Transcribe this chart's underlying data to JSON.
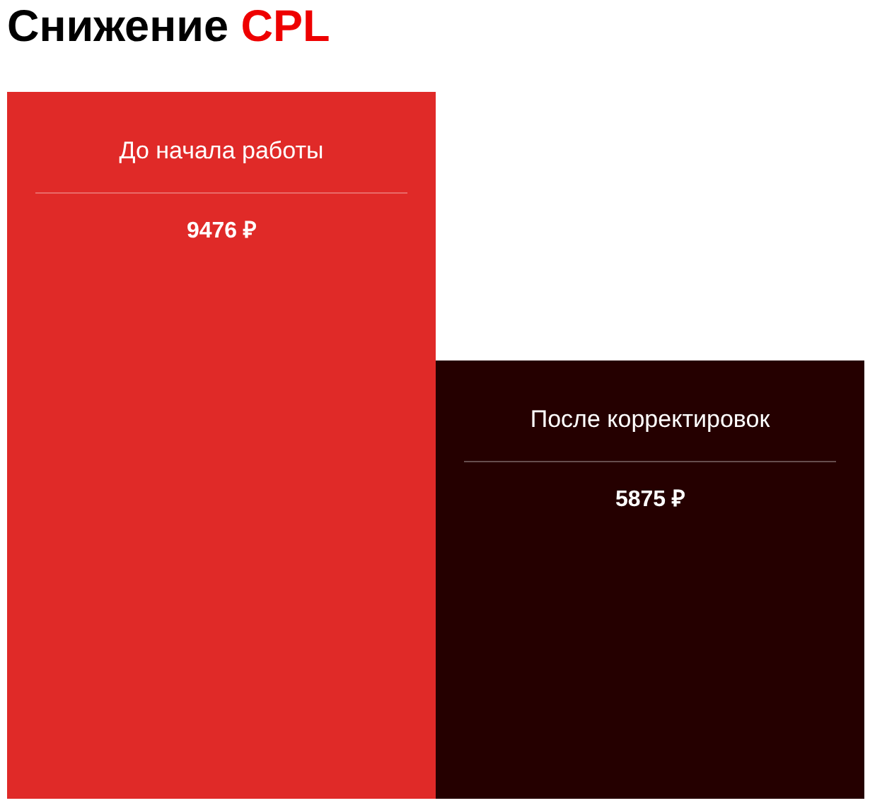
{
  "chart_data": {
    "type": "bar",
    "title": "Снижение CPL",
    "categories": [
      "До начала работы",
      "После корректировок"
    ],
    "values": [
      9476,
      5875
    ],
    "colors": [
      "#e02a28",
      "#250000"
    ],
    "value_labels": [
      "9476 ₽",
      "5875 ₽"
    ]
  }
}
